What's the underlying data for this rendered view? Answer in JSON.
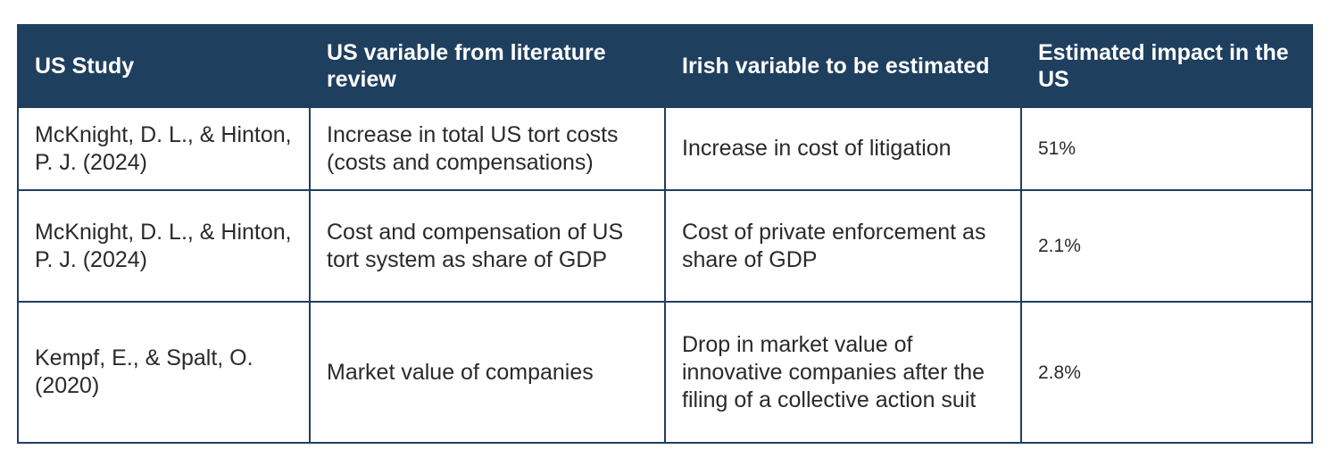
{
  "table": {
    "headers": [
      "US Study",
      "US variable from literature review",
      "Irish variable to be estimated",
      "Estimated impact in the US"
    ],
    "rows": [
      {
        "study": "McKnight, D. L., & Hinton, P. J. (2024)",
        "us_variable": "Increase in total US tort costs (costs and compensations)",
        "irish_variable": "Increase in cost of litigation",
        "impact": "51%"
      },
      {
        "study": "McKnight, D. L., & Hinton, P. J. (2024)",
        "us_variable": "Cost and compensation of US tort system as share of GDP",
        "irish_variable": "Cost of private enforcement as share of GDP",
        "impact": "2.1%"
      },
      {
        "study": "Kempf, E., & Spalt, O. (2020)",
        "us_variable": "Market value of companies",
        "irish_variable": "Drop in market value of innovative companies after the filing of a collective action suit",
        "impact": "2.8%"
      }
    ]
  }
}
